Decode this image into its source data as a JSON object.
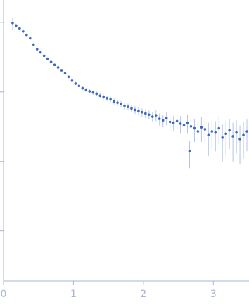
{
  "chart_data": {
    "type": "scatter",
    "log_y": true,
    "color": "#3d68bf",
    "error_color": "#b3c6ea",
    "xlim": [
      0,
      3.51
    ],
    "xticks": [
      0,
      1,
      2,
      3
    ],
    "ylim": [
      0.19,
      2100
    ],
    "yticks": [
      1,
      10,
      100,
      1000
    ],
    "x": [
      0.13,
      0.18,
      0.23,
      0.28,
      0.33,
      0.38,
      0.43,
      0.48,
      0.53,
      0.58,
      0.63,
      0.68,
      0.73,
      0.78,
      0.83,
      0.88,
      0.93,
      0.98,
      1.03,
      1.08,
      1.13,
      1.18,
      1.23,
      1.28,
      1.33,
      1.38,
      1.43,
      1.48,
      1.53,
      1.58,
      1.63,
      1.68,
      1.73,
      1.78,
      1.83,
      1.88,
      1.93,
      1.98,
      2.03,
      2.08,
      2.13,
      2.18,
      2.23,
      2.28,
      2.33,
      2.38,
      2.43,
      2.48,
      2.53,
      2.58,
      2.63,
      2.66,
      2.68,
      2.73,
      2.78,
      2.83,
      2.88,
      2.93,
      2.98,
      3.03,
      3.08,
      3.13,
      3.18,
      3.23,
      3.28,
      3.33,
      3.38,
      3.43,
      3.48
    ],
    "values": [
      980,
      900,
      820,
      740,
      660,
      590,
      480,
      410,
      370,
      330,
      300,
      270,
      245,
      225,
      205,
      185,
      165,
      145,
      132,
      122,
      113,
      107,
      102,
      98,
      94,
      88,
      85,
      81,
      78,
      73,
      70,
      67,
      63,
      61,
      58,
      55,
      53,
      51,
      49,
      47,
      44,
      46,
      41,
      39,
      42,
      37,
      36,
      38,
      35,
      33,
      36,
      14,
      32,
      30,
      27,
      31,
      29,
      24,
      27,
      26,
      30,
      22,
      25,
      28,
      23,
      26,
      21,
      24,
      27
    ],
    "errors": [
      200,
      60,
      40,
      30,
      25,
      20,
      18,
      15,
      13,
      12,
      11,
      10,
      9,
      9,
      8,
      8,
      7,
      7,
      7,
      7,
      7,
      7,
      7,
      7,
      7,
      7,
      7,
      7,
      7,
      7,
      7,
      7,
      7,
      7,
      7,
      7,
      7,
      7,
      7,
      7,
      7,
      8,
      8,
      8,
      9,
      9,
      9,
      10,
      10,
      10,
      11,
      6,
      11,
      11,
      11,
      12,
      12,
      12,
      12,
      12,
      13,
      12,
      13,
      13,
      13,
      13,
      12,
      13,
      13
    ]
  }
}
